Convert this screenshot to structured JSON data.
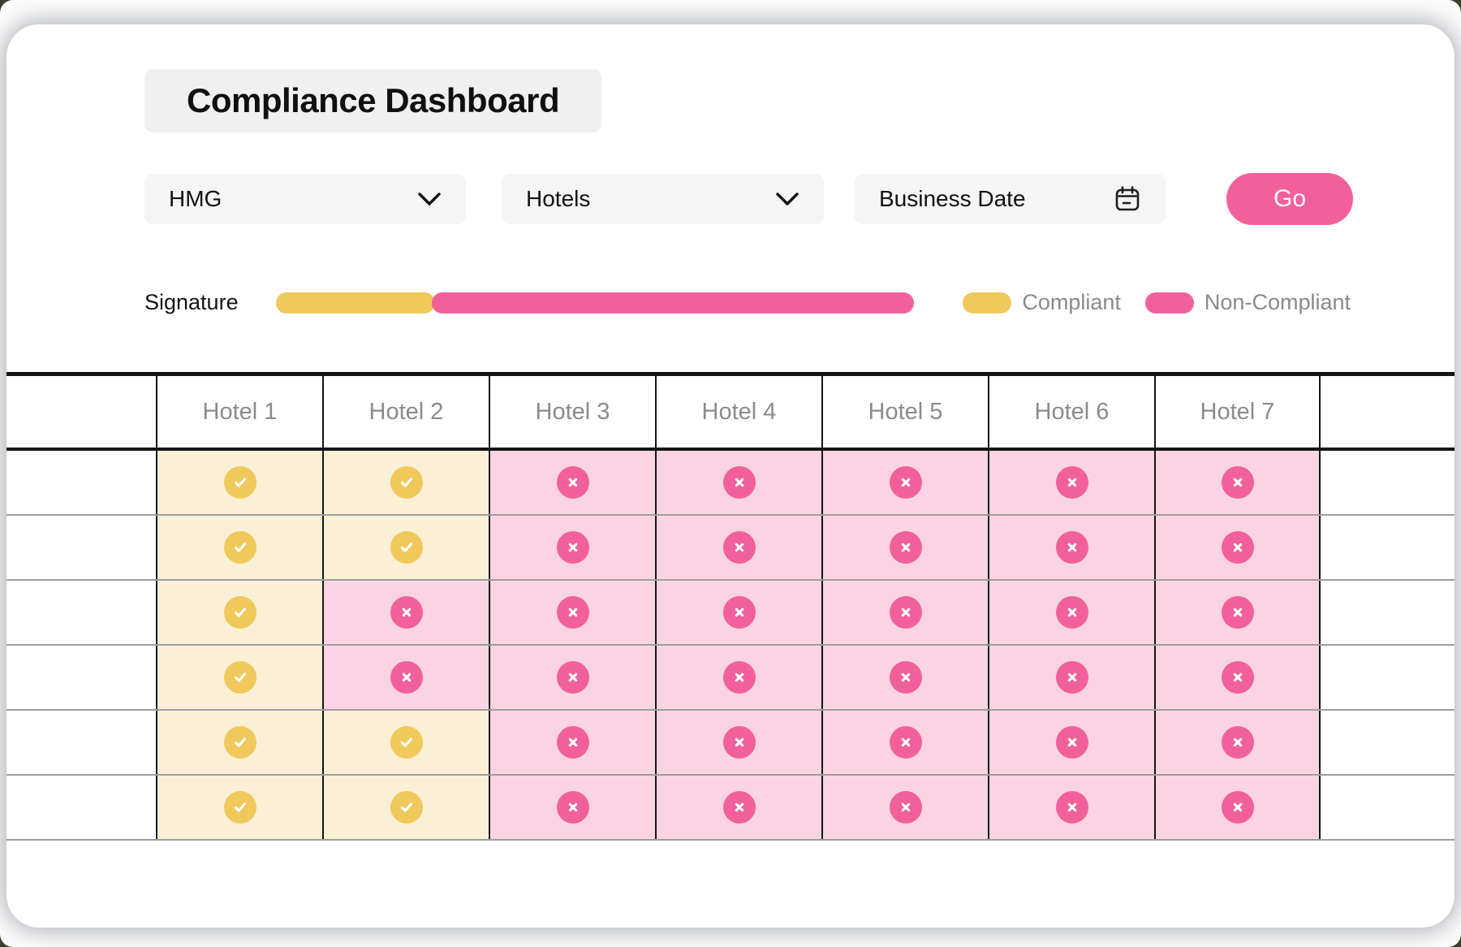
{
  "header": {
    "title": "Compliance Dashboard"
  },
  "filters": {
    "group_select": {
      "value": "HMG",
      "icon": "chevron-down-icon"
    },
    "category_select": {
      "value": "Hotels",
      "icon": "chevron-down-icon"
    },
    "date_field": {
      "placeholder": "Business Date",
      "icon": "calendar-icon"
    },
    "go_button": "Go"
  },
  "signature": {
    "label": "Signature",
    "compliant_percent": 25,
    "non_compliant_percent": 75.5
  },
  "legend": {
    "compliant": "Compliant",
    "non_compliant": "Non-Compliant"
  },
  "colors": {
    "compliant": "#F0C85C",
    "non_compliant": "#F2609B",
    "compliant_bg": "#FAF0D6",
    "non_compliant_bg": "#FBD4E3"
  },
  "status_icons": {
    "compliant": "check-icon",
    "non_compliant": "x-icon"
  },
  "table": {
    "corner_label": "",
    "columns": [
      "Hotel 1",
      "Hotel 2",
      "Hotel 3",
      "Hotel 4",
      "Hotel 5",
      "Hotel 6",
      "Hotel 7"
    ],
    "rows": [
      [
        "compliant",
        "compliant",
        "non_compliant",
        "non_compliant",
        "non_compliant",
        "non_compliant",
        "non_compliant"
      ],
      [
        "compliant",
        "compliant",
        "non_compliant",
        "non_compliant",
        "non_compliant",
        "non_compliant",
        "non_compliant"
      ],
      [
        "compliant",
        "non_compliant",
        "non_compliant",
        "non_compliant",
        "non_compliant",
        "non_compliant",
        "non_compliant"
      ],
      [
        "compliant",
        "non_compliant",
        "non_compliant",
        "non_compliant",
        "non_compliant",
        "non_compliant",
        "non_compliant"
      ],
      [
        "compliant",
        "compliant",
        "non_compliant",
        "non_compliant",
        "non_compliant",
        "non_compliant",
        "non_compliant"
      ],
      [
        "compliant",
        "compliant",
        "non_compliant",
        "non_compliant",
        "non_compliant",
        "non_compliant",
        "non_compliant"
      ]
    ]
  }
}
